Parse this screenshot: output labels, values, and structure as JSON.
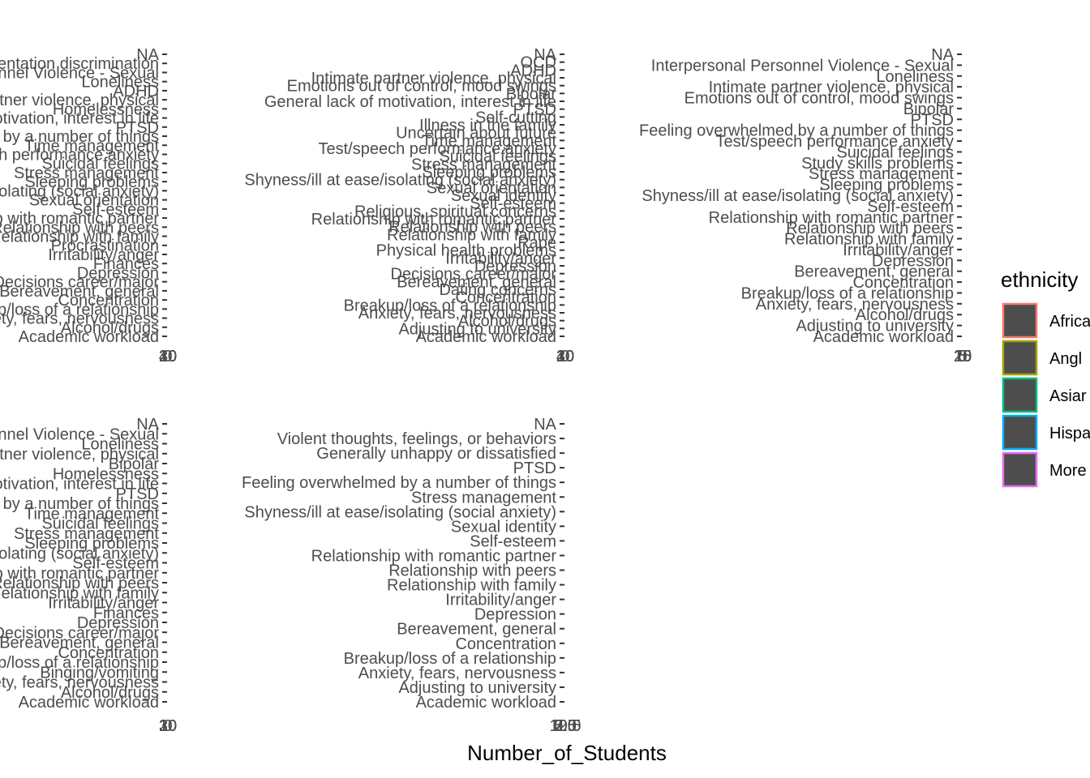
{
  "chart_data": {
    "type": "bar",
    "orientation": "horizontal",
    "xlabel": "Number_of_Students",
    "legend": {
      "title": "ethnicity",
      "placement": "right",
      "entries": [
        {
          "label": "Africa",
          "color": "#F8766D"
        },
        {
          "label": "Angl",
          "color": "#A3A500"
        },
        {
          "label": "Asiar",
          "color": "#00BF7D"
        },
        {
          "label": "Hispa",
          "color": "#00B0F6"
        },
        {
          "label": "More",
          "color": "#E76BF3"
        }
      ]
    },
    "panels": [
      {
        "x_tick_labels": [
          "0",
          "10",
          "20",
          "30",
          "40"
        ],
        "categories": [
          "NA",
          "Sexual orientation discrimination",
          "Interpersonal Personnel Violence - Sexual",
          "Loneliness",
          "ADHD",
          "Intimate partner violence, physical",
          "Homelessness",
          "General lack of motivation, interest in life",
          "PTSD",
          "Feeling overwhelmed by a number of things",
          "Time management",
          "Test/speech performance anxiety",
          "Suicidal feelings",
          "Stress management",
          "Sleeping problems",
          "Shyness/ill at ease/isolating (social anxiety)",
          "Sexual orientation",
          "Self-esteem",
          "Relationship with romantic partner",
          "Relationship with peers",
          "Relationship with family",
          "Procrastination",
          "Irritability/anger",
          "Finances",
          "Depression",
          "Decisions career/major",
          "Bereavement, general",
          "Concentration",
          "Breakup/loss of a relationship",
          "Anxiety, fears, nervousness",
          "Alcohol/drugs",
          "Academic workload"
        ]
      },
      {
        "x_tick_labels": [
          "0",
          "10",
          "20",
          "30",
          "40"
        ],
        "categories": [
          "NA",
          "OCD",
          "ADHD",
          "Intimate partner violence, physical",
          "Emotions out of control, mood swings",
          "Bipolar",
          "General lack of motivation, interest in life",
          "PTSD",
          "Self-cutting",
          "Illness in the family",
          "Uncertain about future",
          "Time management",
          "Test/speech performance anxiety",
          "Suicidal feelings",
          "Stress management",
          "Sleeping problems",
          "Shyness/ill at ease/isolating (social anxiety)",
          "Sexual orientation",
          "Sexual identity",
          "Self-esteem",
          "Religious, spiritual concerns",
          "Relationship with romantic partner",
          "Relationship with peers",
          "Relationship with family",
          "Rape",
          "Physical health problems",
          "Irritability/anger",
          "Depression",
          "Decisions career/major",
          "Bereavement, general",
          "Dating concerns",
          "Concentration",
          "Breakup/loss of a relationship",
          "Anxiety, fears, nervousness",
          "Alcohol/drugs",
          "Adjusting to university",
          "Academic workload"
        ]
      },
      {
        "x_tick_labels": [
          "0",
          "5",
          "10",
          "15",
          "20",
          "25"
        ],
        "categories": [
          "NA",
          "Interpersonal Personnel Violence - Sexual",
          "Loneliness",
          "Intimate partner violence, physical",
          "Emotions out of control, mood swings",
          "Bipolar",
          "PTSD",
          "Feeling overwhelmed by a number of things",
          "Test/speech performance anxiety",
          "Suicidal feelings",
          "Study skills problems",
          "Stress management",
          "Sleeping problems",
          "Shyness/ill at ease/isolating (social anxiety)",
          "Self-esteem",
          "Relationship with romantic partner",
          "Relationship with peers",
          "Relationship with family",
          "Irritability/anger",
          "Depression",
          "Bereavement, general",
          "Concentration",
          "Breakup/loss of a relationship",
          "Anxiety, fears, nervousness",
          "Alcohol/drugs",
          "Adjusting to university",
          "Academic workload"
        ]
      },
      {
        "x_tick_labels": [
          "0",
          "10",
          "20",
          "30"
        ],
        "categories": [
          "NA",
          "Interpersonal Personnel Violence - Sexual",
          "Loneliness",
          "Intimate partner violence, physical",
          "Bipolar",
          "Homelessness",
          "General lack of motivation, interest in life",
          "PTSD",
          "Feeling overwhelmed by a number of things",
          "Time management",
          "Suicidal feelings",
          "Stress management",
          "Sleeping problems",
          "Shyness/ill at ease/isolating (social anxiety)",
          "Self-esteem",
          "Relationship with romantic partner",
          "Relationship with peers",
          "Relationship with family",
          "Irritability/anger",
          "Finances",
          "Depression",
          "Decisions career/major",
          "Bereavement, general",
          "Concentration",
          "Breakup/loss of a relationship",
          "Binging/vomiting",
          "Anxiety, fears, nervousness",
          "Alcohol/drugs",
          "Academic workload"
        ]
      },
      {
        "x_tick_labels": [
          "0.0",
          "2.5",
          "5.0",
          "7.5",
          "10.0",
          "12.5"
        ],
        "categories": [
          "NA",
          "Violent thoughts, feelings, or behaviors",
          "Generally unhappy or dissatisfied",
          "PTSD",
          "Feeling overwhelmed by a number of things",
          "Stress management",
          "Shyness/ill at ease/isolating (social anxiety)",
          "Sexual identity",
          "Self-esteem",
          "Relationship with romantic partner",
          "Relationship with peers",
          "Relationship with family",
          "Irritability/anger",
          "Depression",
          "Bereavement, general",
          "Concentration",
          "Breakup/loss of a relationship",
          "Anxiety, fears, nervousness",
          "Adjusting to university",
          "Academic workload"
        ]
      }
    ]
  }
}
